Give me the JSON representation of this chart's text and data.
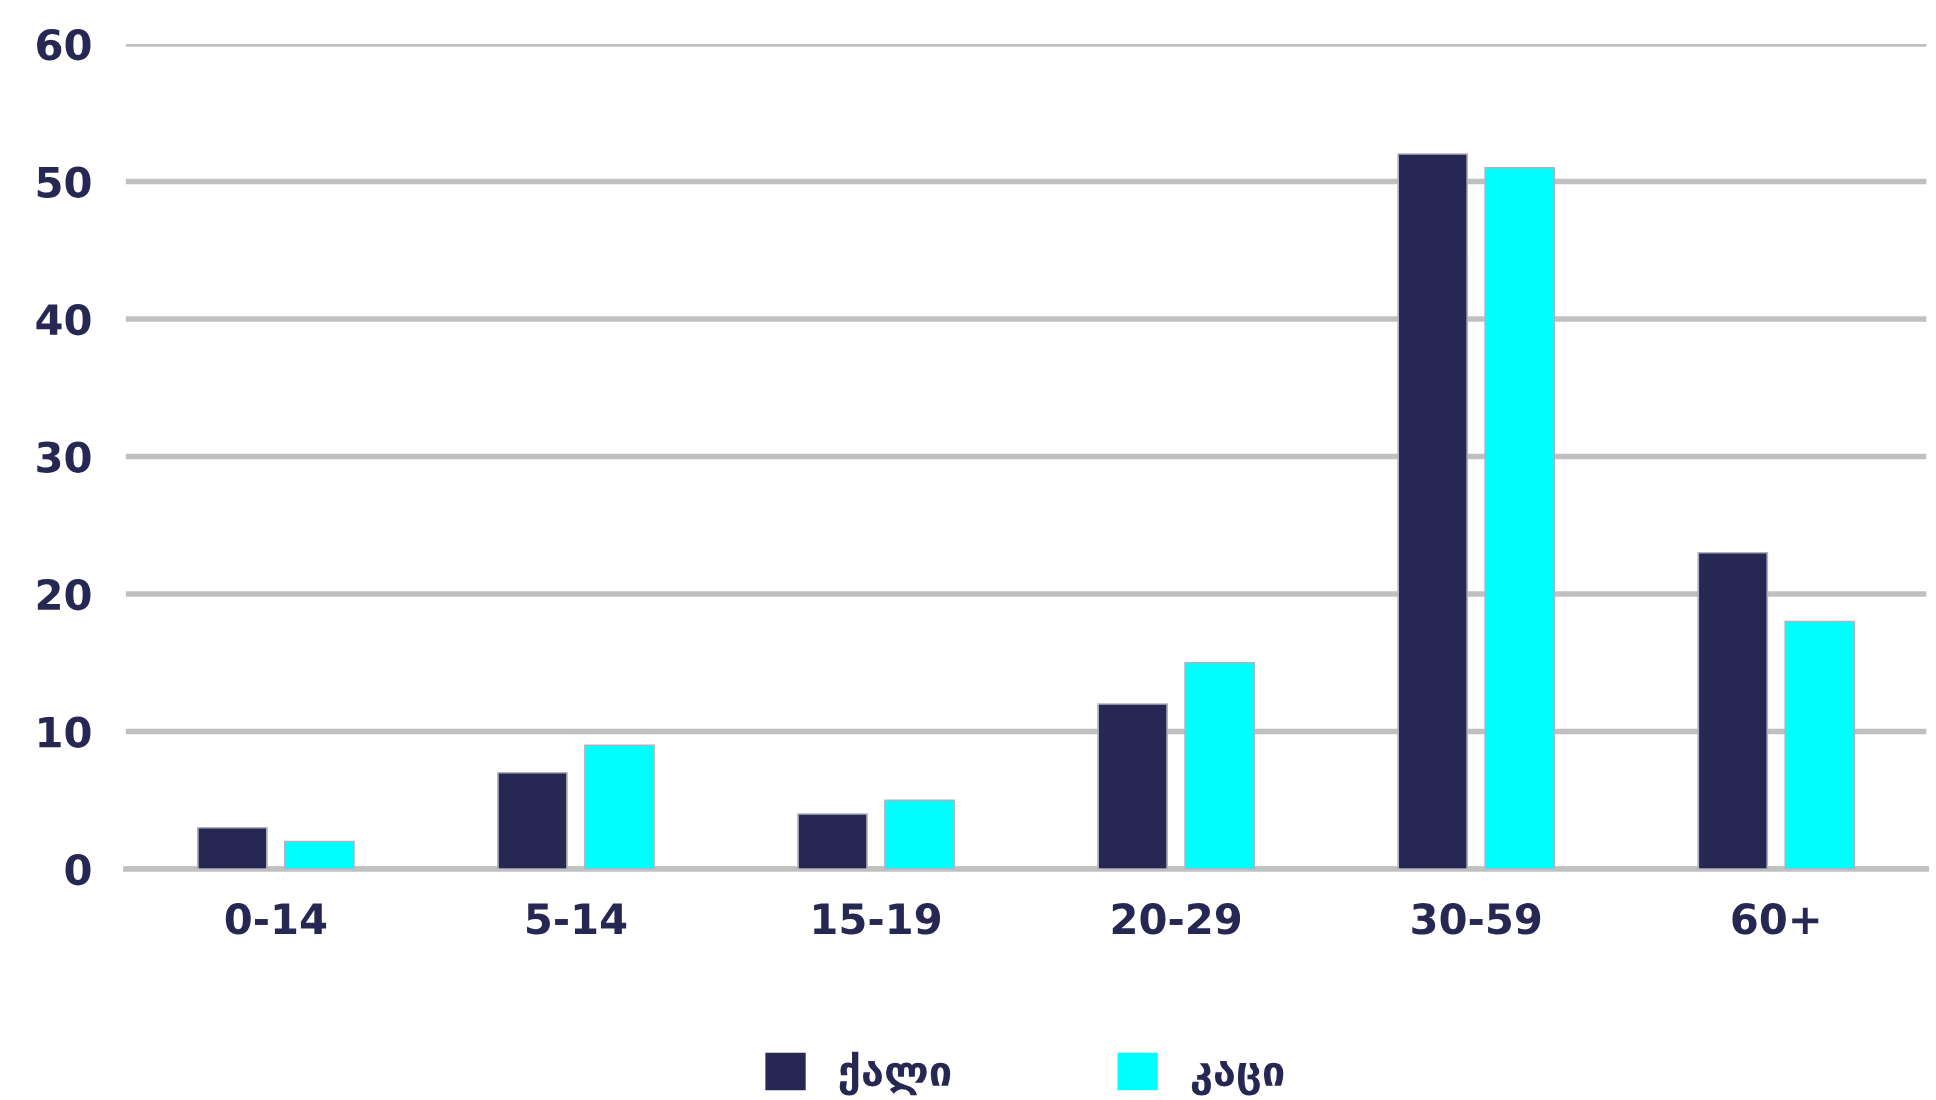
{
  "chart_data": {
    "type": "bar",
    "categories": [
      "0-14",
      "5-14",
      "15-19",
      "20-29",
      "30-59",
      "60+"
    ],
    "series": [
      {
        "name": "ქალი",
        "color": "#262853",
        "values": [
          3,
          7,
          4,
          12,
          52,
          23
        ]
      },
      {
        "name": "კაცი",
        "color": "#00ffff",
        "values": [
          2,
          9,
          5,
          15,
          51,
          18
        ]
      }
    ],
    "ylim": [
      0,
      60
    ],
    "yticks": [
      0,
      10,
      20,
      30,
      40,
      50,
      60
    ],
    "grid": "y",
    "legend": "bottom"
  }
}
